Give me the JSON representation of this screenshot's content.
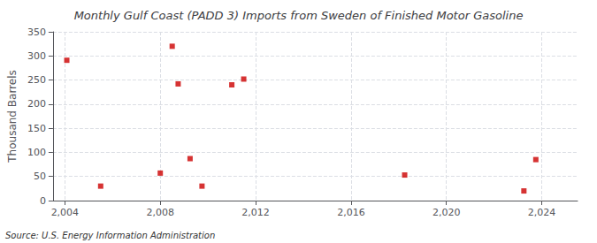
{
  "chart_data": {
    "type": "scatter",
    "title": "Monthly Gulf Coast (PADD 3) Imports from Sweden of Finished Motor Gasoline",
    "ylabel": "Thousand Barrels",
    "source": "Source: U.S. Energy Information Administration",
    "x": [
      2004.08,
      2005.5,
      2008.0,
      2008.5,
      2008.75,
      2009.25,
      2009.75,
      2011.0,
      2011.5,
      2018.25,
      2023.25,
      2023.75
    ],
    "values": [
      291,
      30,
      57,
      320,
      242,
      87,
      30,
      240,
      252,
      53,
      20,
      85
    ],
    "color": "#cc0000",
    "marker": "square",
    "xlim": [
      2003.5,
      2025.5
    ],
    "xticks": [
      2004,
      2008,
      2012,
      2016,
      2020,
      2024
    ],
    "ylim": [
      0,
      350
    ],
    "yticks": [
      0,
      50,
      100,
      150,
      200,
      250,
      300,
      350
    ],
    "grid": true
  }
}
